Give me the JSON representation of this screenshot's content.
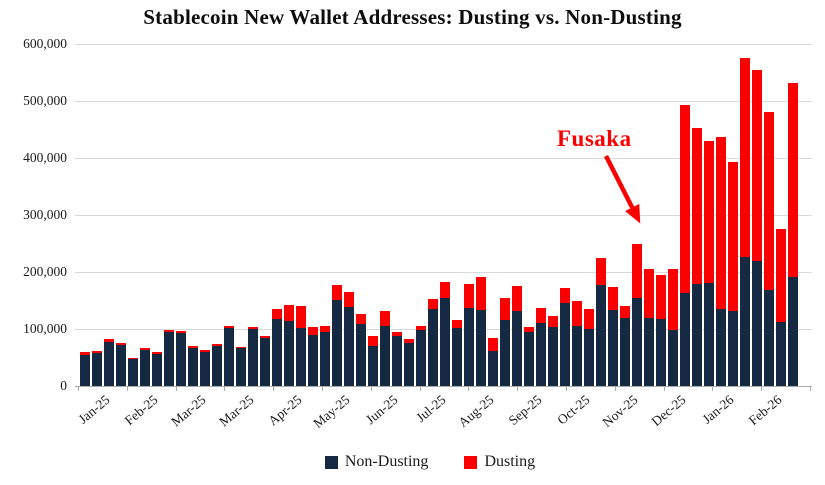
{
  "page": {
    "background": "#ffffff"
  },
  "chart_data": {
    "type": "bar",
    "stacked": true,
    "title": "Stablecoin New Wallet Addresses: Dusting vs. Non-Dusting",
    "x_axis": {
      "tick_labels": [
        "Jan-25",
        "Feb-25",
        "Mar-25",
        "Mar-25",
        "Apr-25",
        "May-25",
        "Jun-25",
        "Jul-25",
        "Aug-25",
        "Sep-25",
        "Oct-25",
        "Nov-25",
        "Dec-25",
        "Jan-26",
        "Feb-26"
      ],
      "bars_per_label": 4,
      "granularity": "weekly"
    },
    "y_axis": {
      "ticks": [
        0,
        100000,
        200000,
        300000,
        400000,
        500000,
        600000
      ],
      "lim": [
        0,
        600000
      ],
      "grid": true
    },
    "series": [
      {
        "name": "Non-Dusting",
        "color": "#152943",
        "values": [
          55000,
          58000,
          78000,
          72000,
          47000,
          63000,
          56000,
          94000,
          93000,
          67000,
          60000,
          70000,
          102000,
          66000,
          100000,
          85000,
          118000,
          114000,
          101000,
          90000,
          94000,
          151000,
          139000,
          108000,
          70000,
          106000,
          87000,
          76000,
          98000,
          135000,
          155000,
          102000,
          137000,
          134000,
          62000,
          116000,
          132000,
          95000,
          110000,
          104000,
          146000,
          105000,
          100000,
          177000,
          133000,
          119000,
          155000,
          120000,
          118000,
          98000,
          163000,
          179000,
          181000,
          135000,
          132000,
          227000,
          220000,
          168000,
          112000,
          192000
        ]
      },
      {
        "name": "Dusting",
        "color": "#fb0000",
        "values": [
          4000,
          4000,
          4000,
          4000,
          3000,
          4000,
          3000,
          4000,
          4000,
          3000,
          3000,
          3000,
          4000,
          3000,
          4000,
          3000,
          17000,
          28000,
          39000,
          13000,
          11000,
          27000,
          26000,
          19000,
          18000,
          25000,
          8000,
          6000,
          7000,
          18000,
          27000,
          14000,
          42000,
          58000,
          23000,
          38000,
          43000,
          9000,
          26000,
          19000,
          26000,
          44000,
          35000,
          48000,
          41000,
          21000,
          95000,
          85000,
          77000,
          107000,
          330000,
          274000,
          249000,
          302000,
          261000,
          349000,
          334000,
          312000,
          163000,
          339000
        ]
      }
    ],
    "legend": {
      "position": "bottom",
      "items": [
        "Non-Dusting",
        "Dusting"
      ]
    },
    "annotation": {
      "text": "Fusaka",
      "color": "#fb0000"
    }
  }
}
